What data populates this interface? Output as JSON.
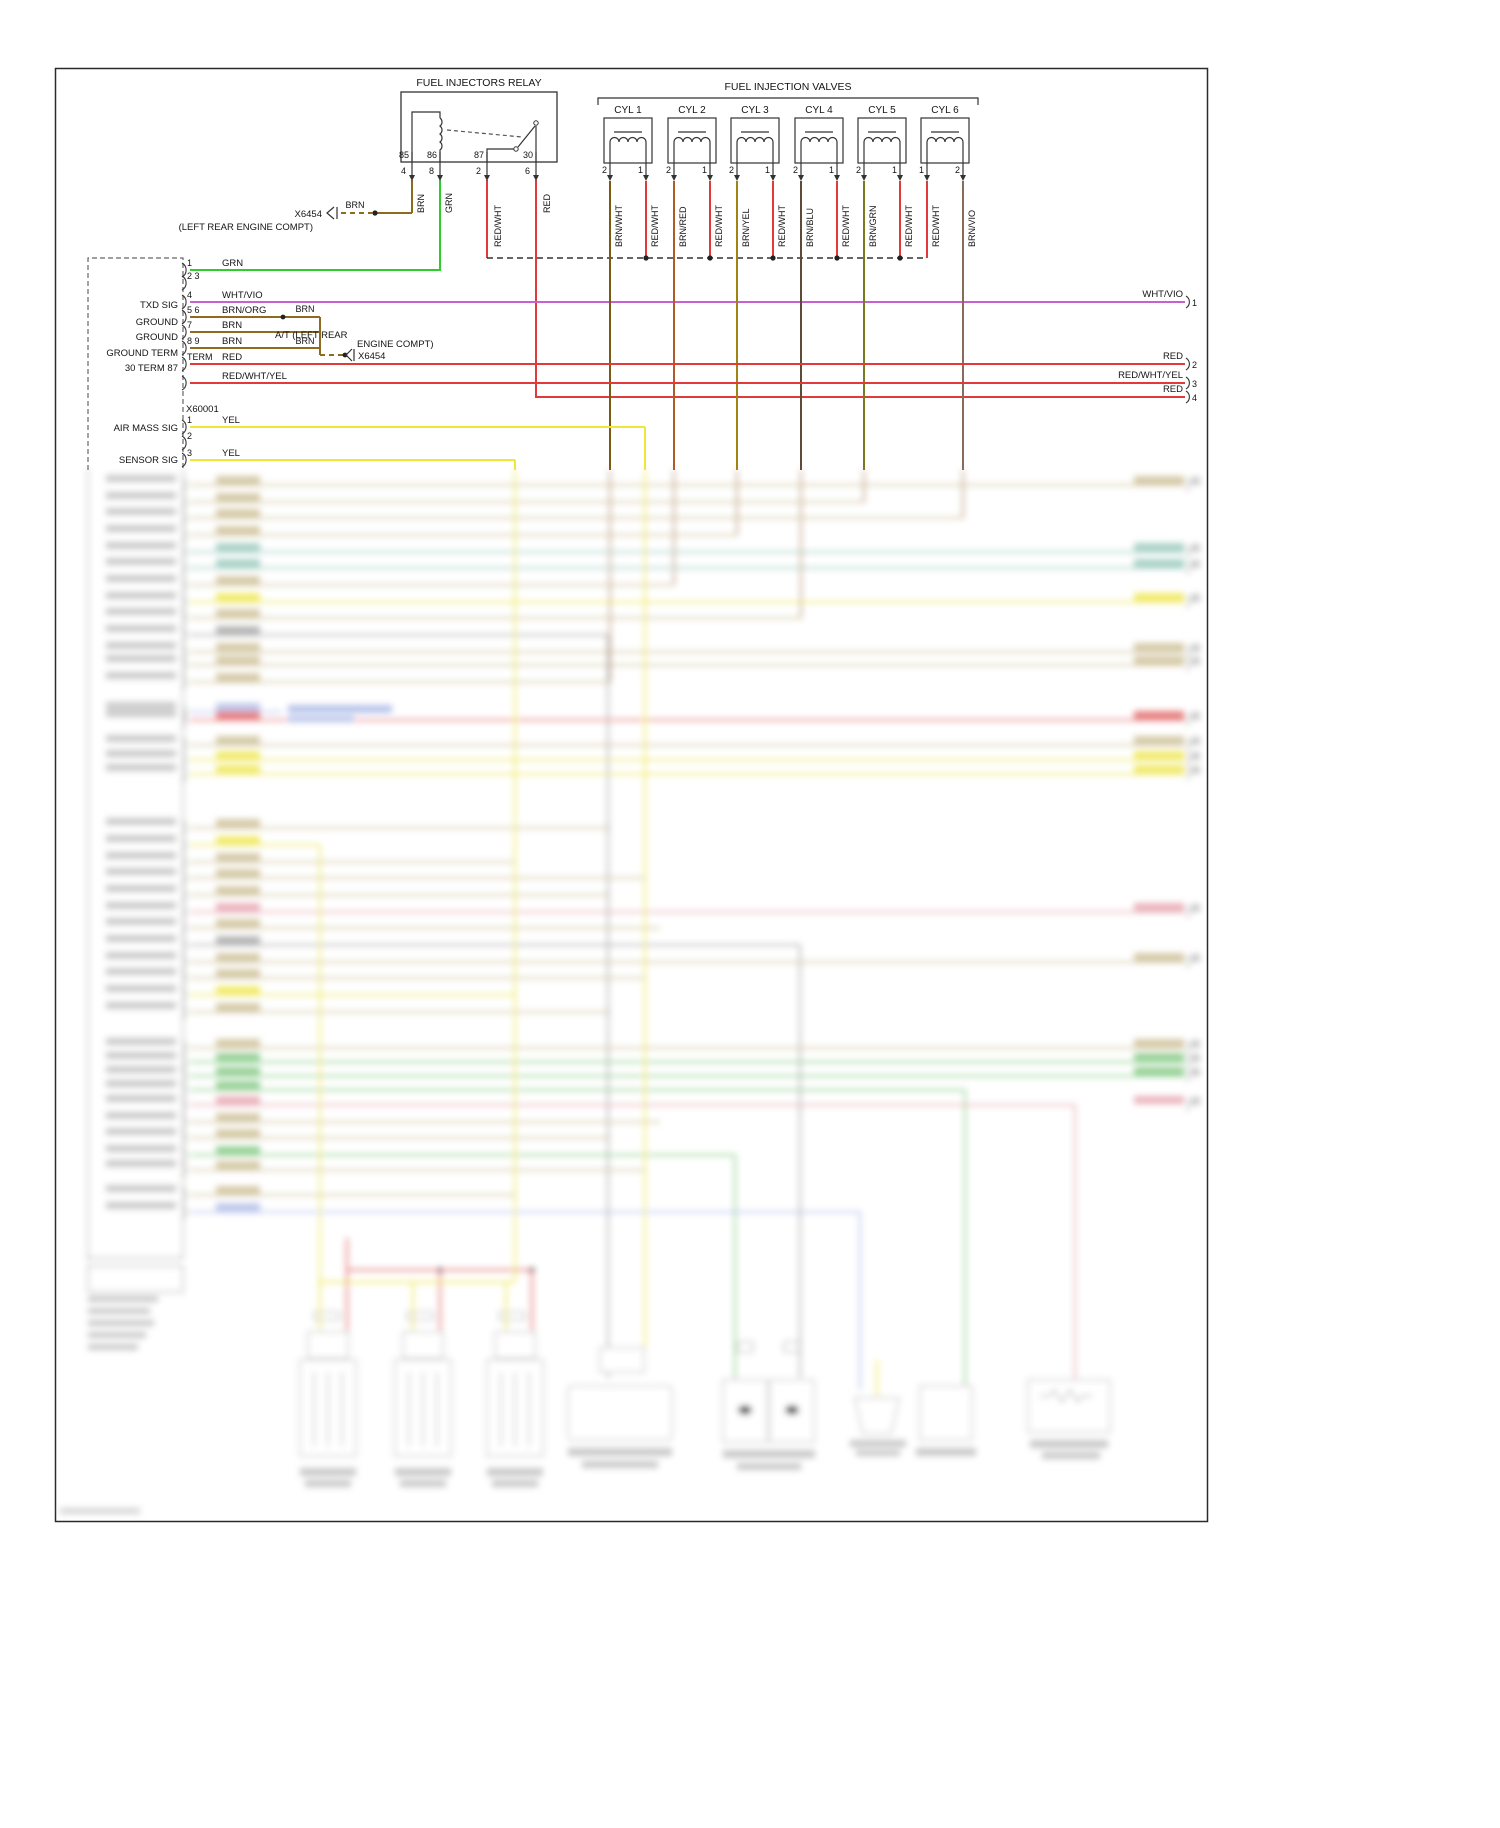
{
  "colors": {
    "brn": "#8f6b1e",
    "grn": "#2ecc2e",
    "red": "#e03a3a",
    "yel": "#efe63a",
    "whtvio": "#c95fd0",
    "brnwht": "#7a5a14",
    "brnred": "#b05a2a",
    "brnyel": "#a08413",
    "brnblu": "#5d4a37",
    "brngrn": "#7a7a1e",
    "brnvio": "#8a6a5a",
    "line": "#333333"
  },
  "relay": {
    "title": "FUEL INJECTORS RELAY",
    "pins": {
      "p85": "85",
      "p86": "86",
      "p87": "87",
      "p30": "30"
    },
    "outs": {
      "o4": "4",
      "o8": "8",
      "o2": "2",
      "o6": "6"
    },
    "wires": {
      "w4": "BRN",
      "w8": "GRN",
      "w2": "RED/WHT",
      "w6": "RED"
    }
  },
  "x6454_left": {
    "name": "X6454",
    "wire": "BRN",
    "location": "(LEFT REAR ENGINE COMPT)"
  },
  "valves": {
    "title": "FUEL INJECTION VALVES",
    "cyl": [
      {
        "label": "CYL 1",
        "pl": "2",
        "pr": "1",
        "wl": "BRN/WHT",
        "wr": "RED/WHT"
      },
      {
        "label": "CYL 2",
        "pl": "2",
        "pr": "1",
        "wl": "BRN/RED",
        "wr": "RED/WHT"
      },
      {
        "label": "CYL 3",
        "pl": "2",
        "pr": "1",
        "wl": "BRN/YEL",
        "wr": "RED/WHT"
      },
      {
        "label": "CYL 4",
        "pl": "2",
        "pr": "1",
        "wl": "BRN/BLU",
        "wr": "RED/WHT"
      },
      {
        "label": "CYL 5",
        "pl": "2",
        "pr": "1",
        "wl": "BRN/GRN",
        "wr": "RED/WHT"
      },
      {
        "label": "CYL 6",
        "pl": "1",
        "pr": "2",
        "wl": "RED/WHT",
        "wr": "BRN/VIO"
      }
    ]
  },
  "ecm": {
    "conn1": {
      "labels": {
        "txd": "TXD SIG",
        "gnd1": "GROUND",
        "gnd2": "GROUND",
        "gndterm": "GROUND TERM",
        "term3087": "30 TERM 87"
      },
      "rows": {
        "r1": {
          "pin": "1",
          "wire": "GRN"
        },
        "r23": {
          "pin": "2 3"
        },
        "r4": {
          "pin": "4",
          "wire": "WHT/VIO"
        },
        "r56": {
          "pin": "5 6",
          "wire": "BRN/ORG"
        },
        "r7": {
          "pin": "7",
          "wire": "BRN"
        },
        "r89": {
          "pin": "8 9",
          "wire": "BRN"
        },
        "rterm": {
          "pin": "TERM",
          "wire": "RED"
        },
        "rrwy": {
          "wire": "RED/WHT/YEL"
        }
      }
    },
    "conn2": {
      "name": "X60001",
      "labels": {
        "airmass": "AIR MASS SIG",
        "sensor": "SENSOR SIG"
      },
      "rows": {
        "r1": {
          "pin": "1",
          "wire": "YEL"
        },
        "r2": {
          "pin": "2"
        },
        "r3": {
          "pin": "3",
          "wire": "YEL"
        }
      }
    }
  },
  "at_branch": {
    "brn_a": "BRN",
    "brn_b": "BRN",
    "line1": "A/T (LEFT REAR",
    "line2": "ENGINE COMPT)",
    "conn": "X6454"
  },
  "right_edge": [
    {
      "label": "WHT/VIO",
      "num": "1"
    },
    {
      "label": "RED",
      "num": "2"
    },
    {
      "label": "RED/WHT/YEL",
      "num": "3"
    },
    {
      "label": "RED",
      "num": "4"
    }
  ]
}
